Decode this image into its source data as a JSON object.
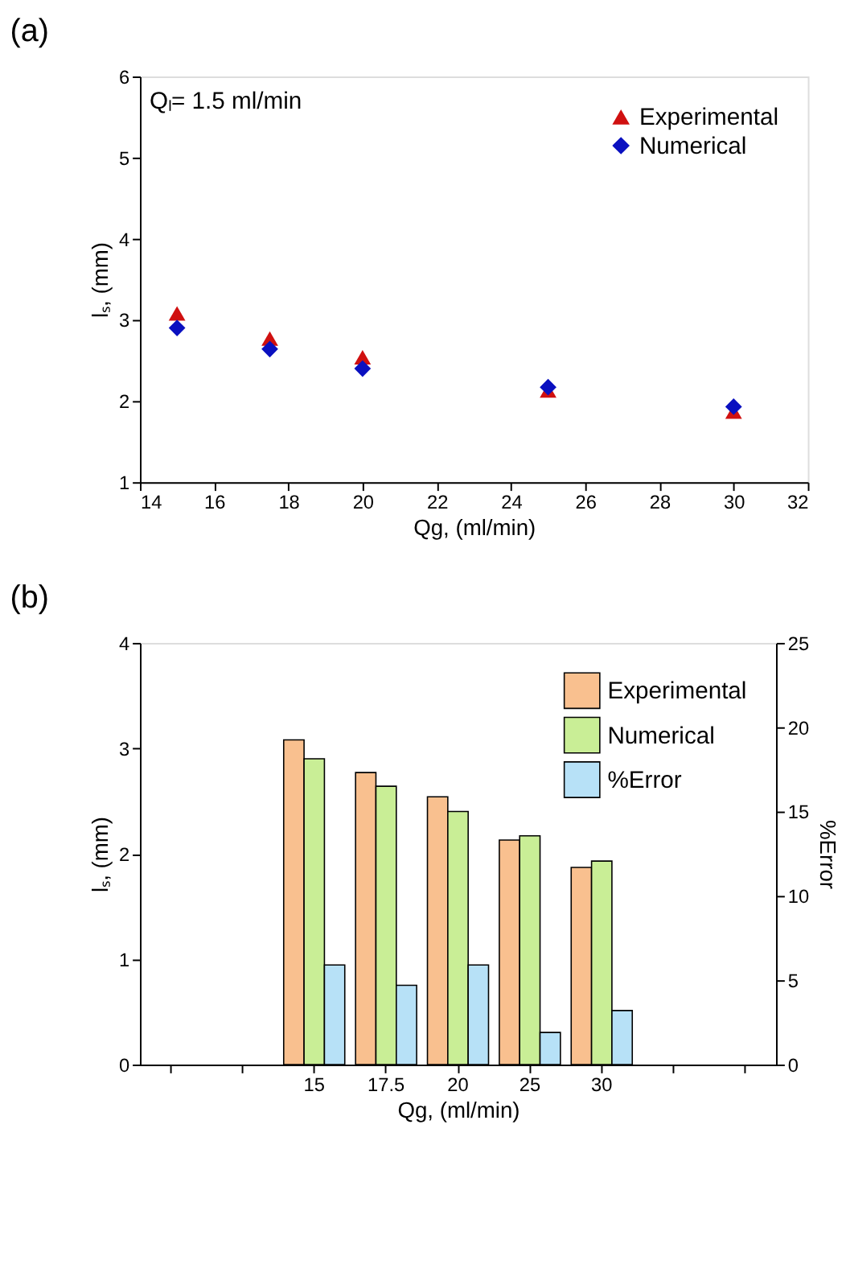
{
  "chart_data": [
    {
      "type": "scatter",
      "title": "(a)",
      "x": [
        15,
        17.5,
        20,
        25,
        30
      ],
      "series": [
        {
          "name": "Experimental",
          "color": "#d01010",
          "marker": "triangle",
          "values": [
            3.08,
            2.77,
            2.54,
            2.13,
            1.87
          ]
        },
        {
          "name": "Numerical",
          "color": "#0a10c0",
          "marker": "diamond",
          "values": [
            2.9,
            2.64,
            2.4,
            2.17,
            1.93
          ]
        }
      ],
      "xlabel": "Qg, (ml/min)",
      "ylabel": "lₛ, (mm)",
      "xlim": [
        14,
        32
      ],
      "xticks": [
        14,
        16,
        18,
        20,
        22,
        24,
        26,
        28,
        30,
        32
      ],
      "ylim": [
        1,
        6
      ],
      "yticks": [
        1,
        2,
        3,
        4,
        5,
        6
      ],
      "annotations": [
        "Qₗ= 1.5 ml/min"
      ],
      "legend": "top right",
      "grid": false
    },
    {
      "type": "bar",
      "title": "(b)",
      "categories": [
        null,
        null,
        "15",
        "17.5",
        "20",
        "25",
        "30",
        null,
        null
      ],
      "series": [
        {
          "name": "Experimental",
          "color": "#f9c08f",
          "values": [
            null,
            null,
            3.08,
            2.77,
            2.54,
            2.13,
            1.87,
            null,
            null
          ]
        },
        {
          "name": "Numerical",
          "color": "#c9ee96",
          "values": [
            null,
            null,
            2.9,
            2.64,
            2.4,
            2.17,
            1.93,
            null,
            null
          ]
        },
        {
          "name": "%Error",
          "color": "#b7e1f7",
          "axis": "y2",
          "values": [
            null,
            null,
            5.9,
            4.7,
            5.9,
            1.9,
            3.2,
            null,
            null
          ]
        }
      ],
      "xlabel": "Qg, (ml/min)",
      "ylabel": "lₛ, (mm)",
      "y2label": "%Error",
      "ylim": [
        0,
        4
      ],
      "yticks": [
        0,
        1,
        2,
        3,
        4
      ],
      "y2lim": [
        0,
        25
      ],
      "y2ticks": [
        0,
        5,
        10,
        15,
        20,
        25
      ],
      "legend": "top right",
      "grid": false
    }
  ]
}
